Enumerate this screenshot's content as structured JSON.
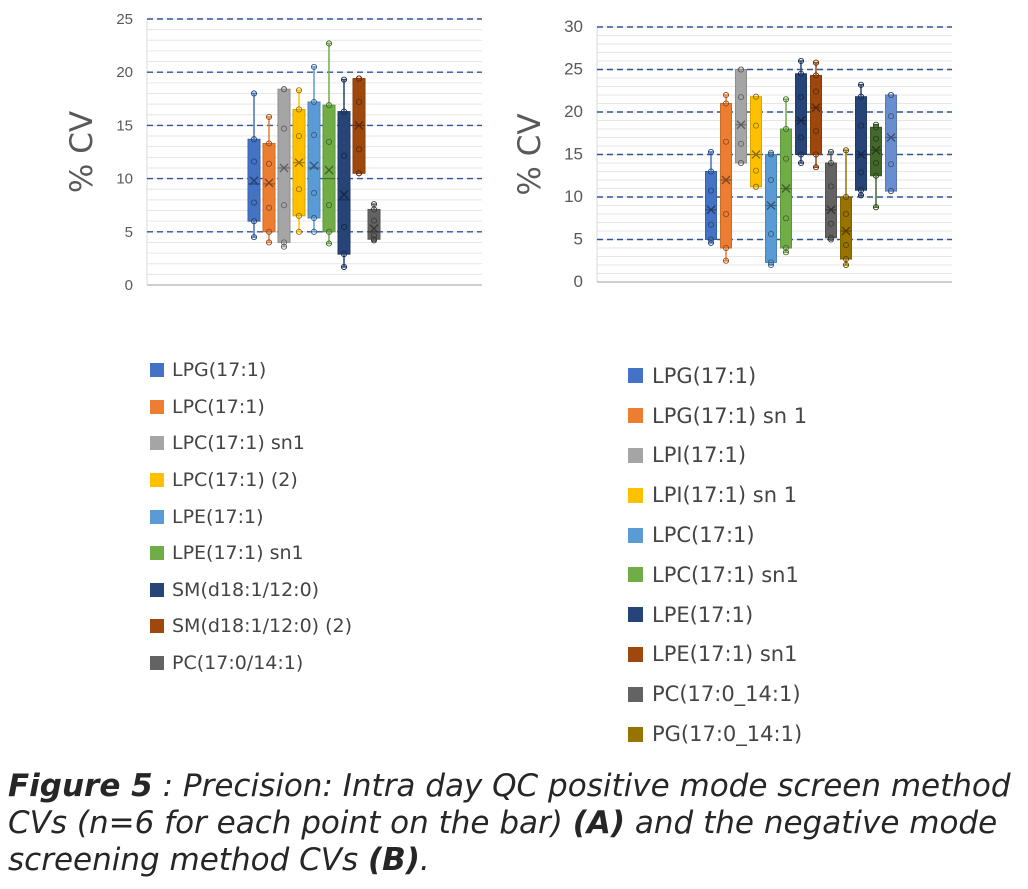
{
  "chart_data": [
    {
      "type": "box",
      "panel": "A",
      "ylabel": "% CV",
      "ylim": [
        0,
        25
      ],
      "yticks": [
        0,
        5,
        10,
        15,
        20,
        25
      ],
      "grid": true,
      "legend_position": "bottom",
      "series": [
        {
          "name": "LPG(17:1)",
          "color": "#4472C4",
          "min": 4.5,
          "q1": 6.0,
          "median": 9.5,
          "q3": 13.7,
          "max": 18.0,
          "mean": 9.8
        },
        {
          "name": "LPC(17:1)",
          "color": "#ED7D31",
          "min": 4.0,
          "q1": 5.0,
          "median": 9.5,
          "q3": 13.3,
          "max": 15.8,
          "mean": 9.6
        },
        {
          "name": "LPC(17:1) sn1",
          "color": "#A5A5A5",
          "min": 3.6,
          "q1": 4.0,
          "median": 11.0,
          "q3": 18.4,
          "max": 18.4,
          "mean": 11.0
        },
        {
          "name": "LPC(17:1) (2)",
          "color": "#FFC000",
          "min": 5.0,
          "q1": 6.5,
          "median": 11.5,
          "q3": 16.5,
          "max": 18.3,
          "mean": 11.5
        },
        {
          "name": "LPE(17:1)",
          "color": "#5B9BD5",
          "min": 5.0,
          "q1": 6.3,
          "median": 11.0,
          "q3": 17.2,
          "max": 20.5,
          "mean": 11.2
        },
        {
          "name": "LPE(17:1) sn1",
          "color": "#70AD47",
          "min": 3.9,
          "q1": 5.0,
          "median": 10.0,
          "q3": 16.9,
          "max": 22.7,
          "mean": 10.8
        },
        {
          "name": "SM(d18:1/12:0)",
          "color": "#264478",
          "min": 1.7,
          "q1": 2.9,
          "median": 8.0,
          "q3": 16.3,
          "max": 19.3,
          "mean": 8.5
        },
        {
          "name": "SM(d18:1/12:0) (2)",
          "color": "#9E480E",
          "min": 10.5,
          "q1": 10.5,
          "median": 15.0,
          "q3": 19.4,
          "max": 19.4,
          "mean": 15.0
        },
        {
          "name": "PC(17:0/14:1)",
          "color": "#636363",
          "min": 4.2,
          "q1": 4.3,
          "median": 5.0,
          "q3": 7.1,
          "max": 7.6,
          "mean": 5.3
        }
      ]
    },
    {
      "type": "box",
      "panel": "B",
      "ylabel": "% CV",
      "ylim": [
        0,
        30
      ],
      "yticks": [
        0,
        5,
        10,
        15,
        20,
        25,
        30
      ],
      "grid": true,
      "legend_position": "bottom",
      "series": [
        {
          "name": "LPG(17:1)",
          "color": "#4472C4",
          "min": 4.6,
          "q1": 5.0,
          "median": 8.5,
          "q3": 13.0,
          "max": 15.3,
          "mean": 8.5
        },
        {
          "name": "LPG(17:1) sn 1",
          "color": "#ED7D31",
          "min": 2.5,
          "q1": 4.0,
          "median": 12.0,
          "q3": 21.0,
          "max": 22.0,
          "mean": 12.0
        },
        {
          "name": "LPI(17:1)",
          "color": "#A5A5A5",
          "min": 14.0,
          "q1": 14.0,
          "median": 18.5,
          "q3": 25.0,
          "max": 25.0,
          "mean": 18.5
        },
        {
          "name": "LPI(17:1) sn 1",
          "color": "#FFC000",
          "min": 11.2,
          "q1": 11.2,
          "median": 15.0,
          "q3": 21.8,
          "max": 21.8,
          "mean": 15.0
        },
        {
          "name": "LPC(17:1)",
          "color": "#5B9BD5",
          "min": 2.0,
          "q1": 2.3,
          "median": 9.0,
          "q3": 15.0,
          "max": 15.2,
          "mean": 9.0
        },
        {
          "name": "LPC(17:1) sn1",
          "color": "#70AD47",
          "min": 3.5,
          "q1": 4.0,
          "median": 11.0,
          "q3": 18.0,
          "max": 21.5,
          "mean": 11.0
        },
        {
          "name": "LPE(17:1)",
          "color": "#264478",
          "min": 14.0,
          "q1": 15.0,
          "median": 19.0,
          "q3": 24.5,
          "max": 26.0,
          "mean": 19.0
        },
        {
          "name": "LPE(17:1) sn1",
          "color": "#9E480E",
          "min": 13.5,
          "q1": 15.0,
          "median": 20.5,
          "q3": 24.3,
          "max": 25.8,
          "mean": 20.5
        },
        {
          "name": "PC(17:0_14:1)",
          "color": "#636363",
          "min": 5.0,
          "q1": 5.2,
          "median": 8.5,
          "q3": 14.0,
          "max": 15.3,
          "mean": 8.5
        },
        {
          "name": "PG(17:0_14:1)",
          "color": "#997300",
          "min": 2.0,
          "q1": 2.7,
          "median": 6.0,
          "q3": 10.0,
          "max": 15.5,
          "mean": 6.0
        },
        {
          "name": "",
          "color": "#264478",
          "min": 10.2,
          "q1": 10.8,
          "median": 15.0,
          "q3": 21.8,
          "max": 23.2,
          "mean": 15.0
        },
        {
          "name": "",
          "color": "#43682B",
          "min": 8.8,
          "q1": 12.5,
          "median": 15.5,
          "q3": 18.2,
          "max": 18.5,
          "mean": 15.5
        },
        {
          "name": "",
          "color": "#698ED0",
          "min": 10.7,
          "q1": 10.7,
          "median": 17.0,
          "q3": 22.0,
          "max": 22.0,
          "mean": 17.0
        }
      ]
    }
  ],
  "caption": {
    "figure_label": "Figure 5",
    "part1": " : Precision: Intra day QC positive mode screen method CVs (n=6 for each point on the bar) ",
    "label_a": "(A)",
    "part2": " and the negative mode screening method CVs ",
    "label_b": "(B)",
    "part3": "."
  }
}
